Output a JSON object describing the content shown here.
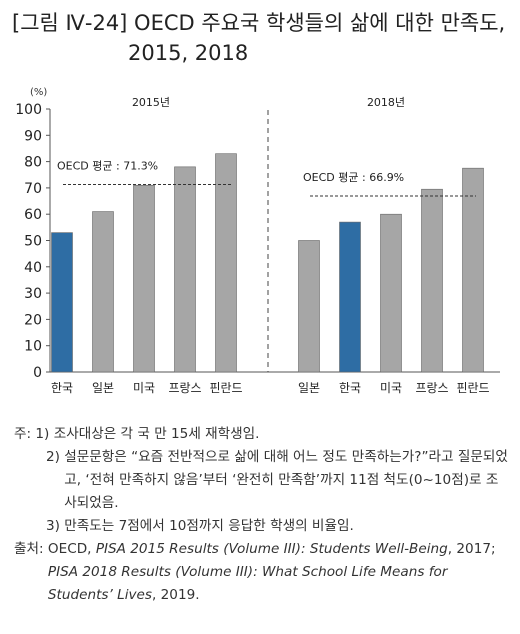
{
  "figure": {
    "title_line1": "[그림 Ⅳ-24] OECD 주요국 학생들의 삶에 대한 만족도,",
    "title_line2": "2015, 2018"
  },
  "chart_data": {
    "type": "bar",
    "unit_label": "(%)",
    "ylim": [
      0,
      100
    ],
    "yticks": [
      0,
      10,
      20,
      30,
      40,
      50,
      60,
      70,
      80,
      90,
      100
    ],
    "grid": false,
    "panels": [
      {
        "label": "2015년",
        "categories": [
          "한국",
          "일본",
          "미국",
          "프랑스",
          "핀란드"
        ],
        "values": [
          53,
          61,
          71,
          78,
          83
        ],
        "highlight": "한국",
        "reference": {
          "label": "OECD 평균 : 71.3%",
          "value": 71.3
        }
      },
      {
        "label": "2018년",
        "categories": [
          "일본",
          "한국",
          "미국",
          "프랑스",
          "핀란드"
        ],
        "values": [
          50,
          57,
          60,
          69.5,
          77.5
        ],
        "highlight": "한국",
        "reference": {
          "label": "OECD 평균 : 66.9%",
          "value": 66.9
        }
      }
    ],
    "colors": {
      "bar": "#a6a6a6",
      "highlight": "#2e6da4"
    }
  },
  "notes": {
    "n1_lead": "주: 1) ",
    "n1": "조사대상은 각 국 만 15세 재학생임.",
    "n2_lead": "2) ",
    "n2": "설문문항은 “요즘 전반적으로 삶에 대해 어느 정도 만족하는가?”라고 질문되었고, ‘전혀 만족하지 않음’부터 ‘완전히 만족함’까지 11점 척도(0~10점)로 조사되었음.",
    "n3_lead": "3) ",
    "n3": "만족도는 7점에서 10점까지 응답한 학생의 비율임.",
    "src_lead": "출처: ",
    "src_a": "OECD, ",
    "src_b": "PISA 2015 Results (Volume III): Students Well-Being",
    "src_c": ", 2017; ",
    "src_d": "PISA 2018 Results (Volume III): What School Life Means for Students’ Lives",
    "src_e": ", 2019."
  }
}
